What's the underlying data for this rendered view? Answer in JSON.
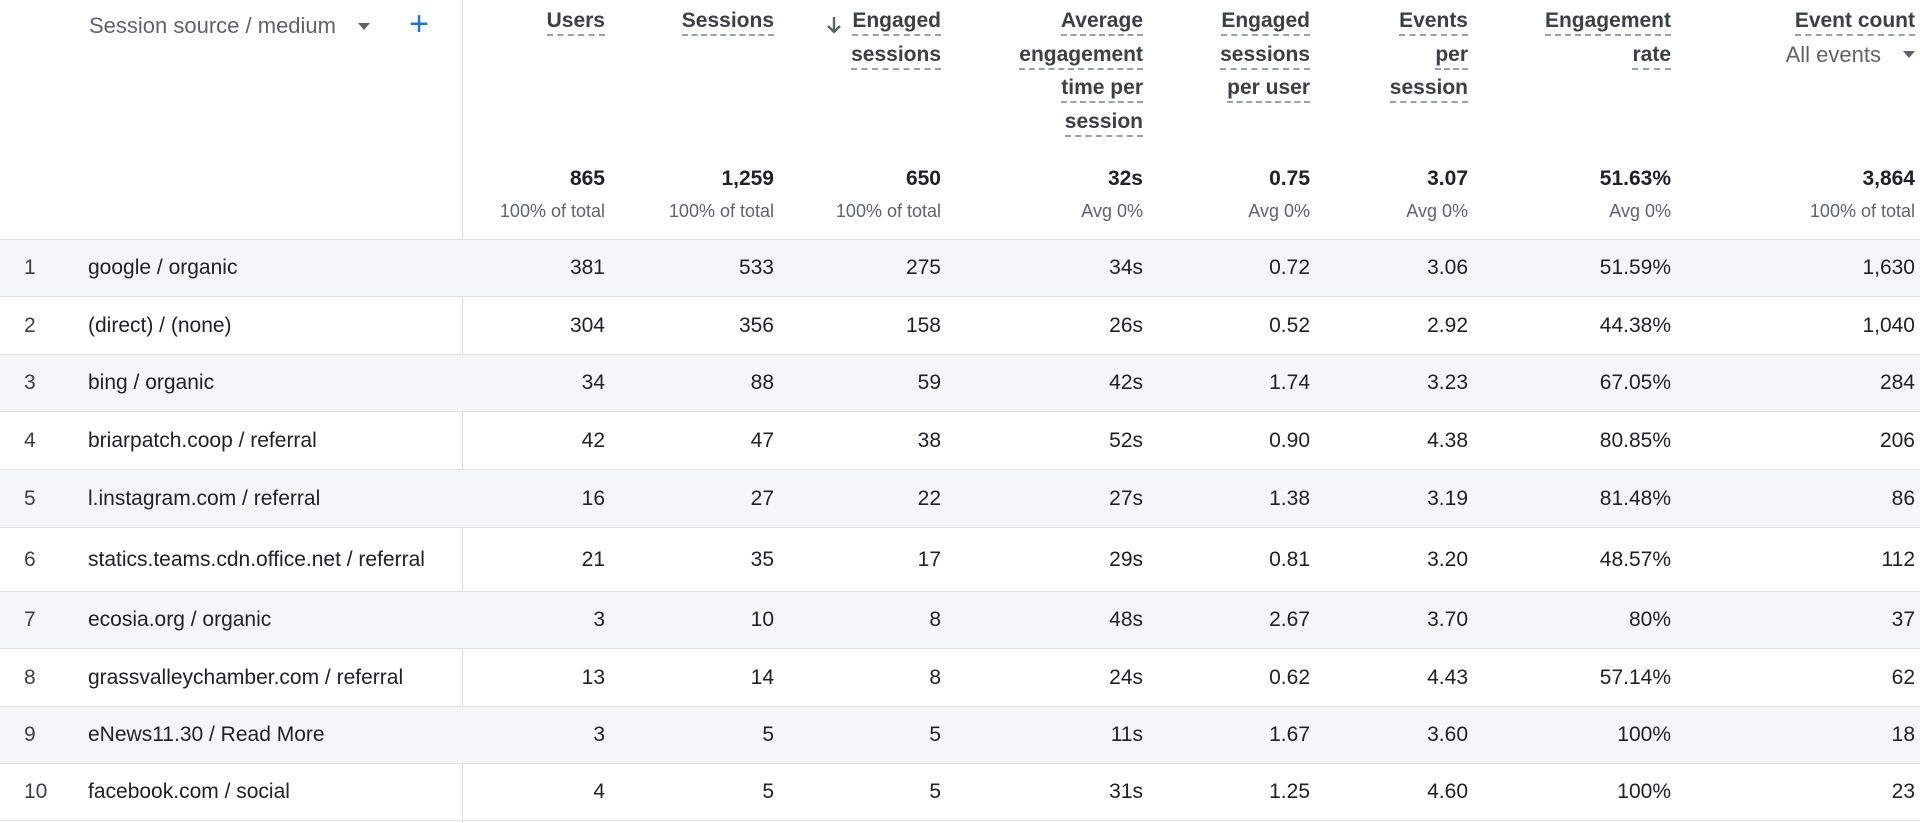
{
  "dimension": {
    "label": "Session source / medium",
    "add_label": "+"
  },
  "columns": [
    {
      "key": "users",
      "lines": [
        "Users"
      ],
      "total": "865",
      "total_sub": "100% of total"
    },
    {
      "key": "sessions",
      "lines": [
        "Sessions"
      ],
      "total": "1,259",
      "total_sub": "100% of total"
    },
    {
      "key": "engaged_sessions",
      "lines": [
        "Engaged",
        "sessions"
      ],
      "total": "650",
      "total_sub": "100% of total",
      "sorted": "descending"
    },
    {
      "key": "avg_engagement_time",
      "lines": [
        "Average",
        "engagement",
        "time per",
        "session"
      ],
      "total": "32s",
      "total_sub": "Avg 0%"
    },
    {
      "key": "engaged_sessions_per_user",
      "lines": [
        "Engaged",
        "sessions",
        "per user"
      ],
      "total": "0.75",
      "total_sub": "Avg 0%"
    },
    {
      "key": "events_per_session",
      "lines": [
        "Events",
        "per",
        "session"
      ],
      "total": "3.07",
      "total_sub": "Avg 0%"
    },
    {
      "key": "engagement_rate",
      "lines": [
        "Engagement",
        "rate"
      ],
      "total": "51.63%",
      "total_sub": "Avg 0%"
    },
    {
      "key": "event_count",
      "lines": [
        "Event count"
      ],
      "total": "3,864",
      "total_sub": "100% of total",
      "selector": "All events"
    }
  ],
  "rows": [
    {
      "index": "1",
      "source": "google / organic",
      "values": [
        "381",
        "533",
        "275",
        "34s",
        "0.72",
        "3.06",
        "51.59%",
        "1,630"
      ]
    },
    {
      "index": "2",
      "source": "(direct) / (none)",
      "values": [
        "304",
        "356",
        "158",
        "26s",
        "0.52",
        "2.92",
        "44.38%",
        "1,040"
      ]
    },
    {
      "index": "3",
      "source": "bing / organic",
      "values": [
        "34",
        "88",
        "59",
        "42s",
        "1.74",
        "3.23",
        "67.05%",
        "284"
      ]
    },
    {
      "index": "4",
      "source": "briarpatch.coop / referral",
      "values": [
        "42",
        "47",
        "38",
        "52s",
        "0.90",
        "4.38",
        "80.85%",
        "206"
      ]
    },
    {
      "index": "5",
      "source": "l.instagram.com / referral",
      "values": [
        "16",
        "27",
        "22",
        "27s",
        "1.38",
        "3.19",
        "81.48%",
        "86"
      ]
    },
    {
      "index": "6",
      "source": "statics.teams.cdn.office.net / referral",
      "values": [
        "21",
        "35",
        "17",
        "29s",
        "0.81",
        "3.20",
        "48.57%",
        "112"
      ]
    },
    {
      "index": "7",
      "source": "ecosia.org / organic",
      "values": [
        "3",
        "10",
        "8",
        "48s",
        "2.67",
        "3.70",
        "80%",
        "37"
      ]
    },
    {
      "index": "8",
      "source": "grassvalleychamber.com / referral",
      "values": [
        "13",
        "14",
        "8",
        "24s",
        "0.62",
        "4.43",
        "57.14%",
        "62"
      ]
    },
    {
      "index": "9",
      "source": "eNews11.30 / Read More",
      "values": [
        "3",
        "5",
        "5",
        "11s",
        "1.67",
        "3.60",
        "100%",
        "18"
      ]
    },
    {
      "index": "10",
      "source": "facebook.com / social",
      "values": [
        "4",
        "5",
        "5",
        "31s",
        "1.25",
        "4.60",
        "100%",
        "23"
      ]
    }
  ],
  "colors": {
    "accent": "#1a73e8",
    "row_shade": "#f4f6f9",
    "border": "#e0e0e0",
    "muted_text": "#5f6368"
  },
  "icons": {
    "sort": "arrow-down-icon",
    "dropdown": "caret-down-icon",
    "add": "plus-icon"
  }
}
